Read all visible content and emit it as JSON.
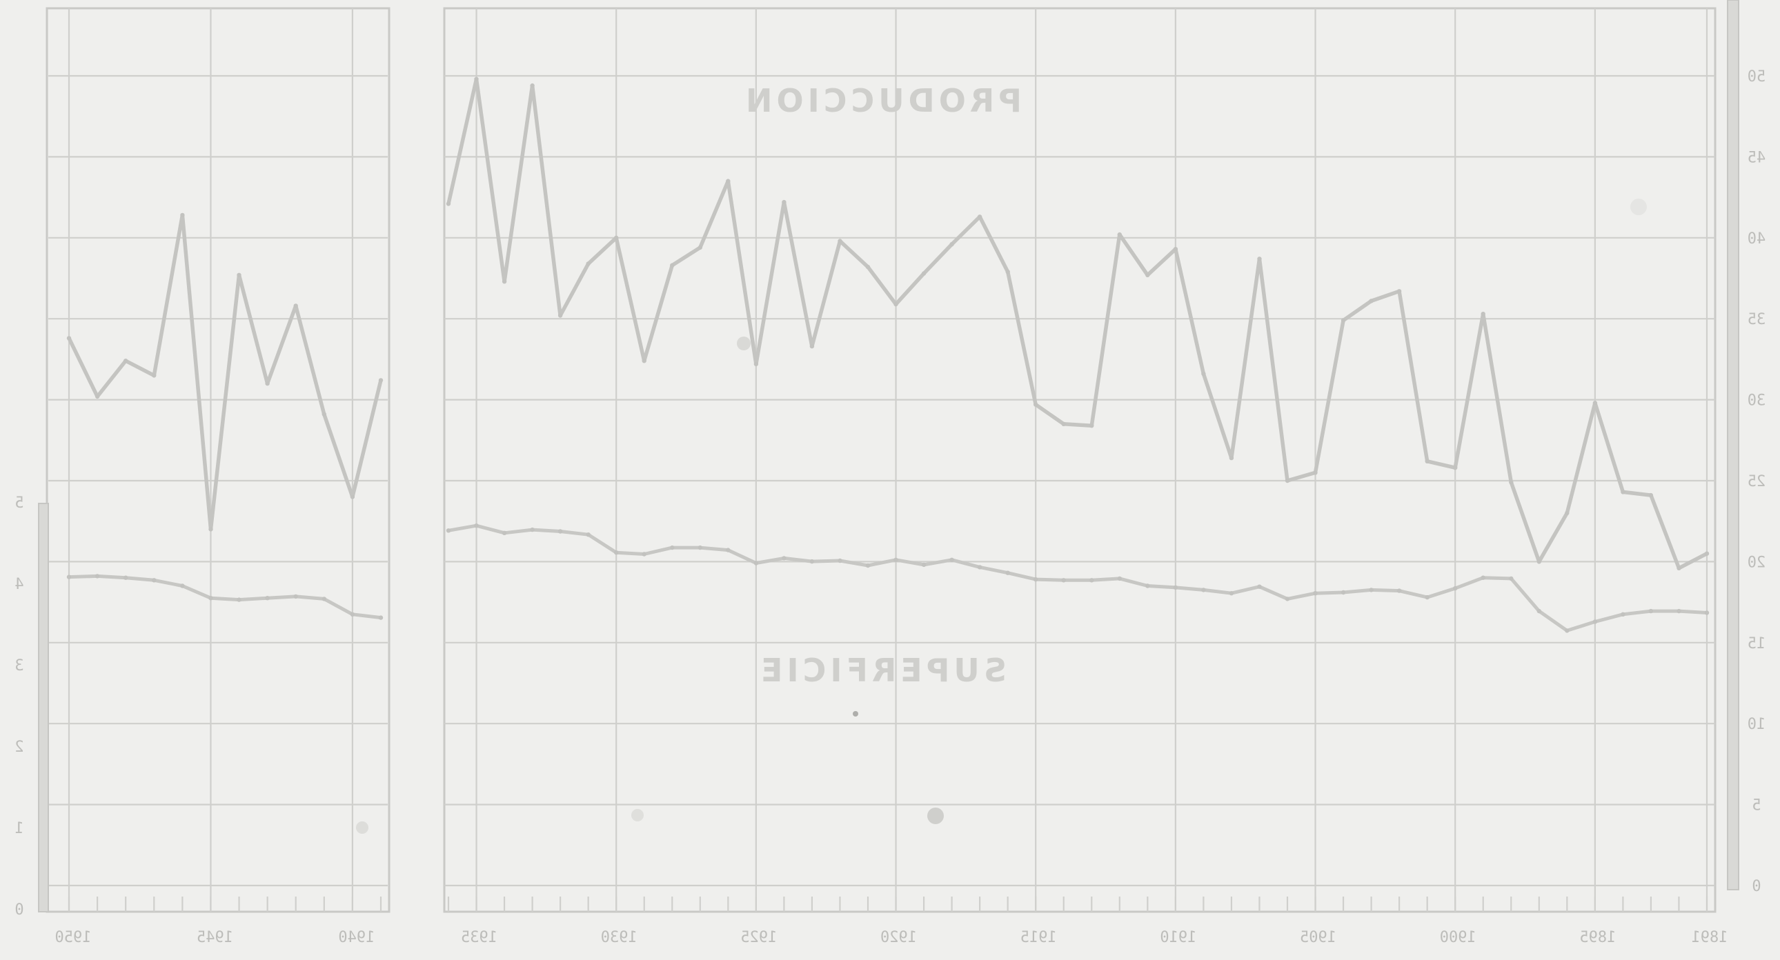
{
  "chart_data": {
    "type": "line",
    "note_orientation": "mirrored",
    "labels": {
      "production": "PRODUCCION",
      "surface": "SUPERFICIE"
    },
    "left_axis": {
      "ticks": [
        "0",
        "1",
        "2",
        "3",
        "4",
        "5"
      ],
      "range": [
        0,
        5
      ]
    },
    "right_axis": {
      "ticks": [
        "0",
        "5",
        "10",
        "15",
        "20",
        "25",
        "30",
        "35",
        "40",
        "45",
        "50"
      ],
      "range": [
        0,
        50
      ]
    },
    "x_ticks_left": [
      "1950",
      "1945",
      "1940"
    ],
    "x_ticks_right": [
      "1935",
      "1930",
      "1925",
      "1920",
      "1915",
      "1910",
      "1905",
      "1900",
      "1895",
      "1891"
    ],
    "series": [
      {
        "name": "PRODUCCION",
        "panel": "left",
        "x": [
          1950,
          1949,
          1948,
          1947,
          1946,
          1945,
          1944,
          1943,
          1942,
          1941,
          1940,
          1939
        ],
        "values": [
          33.8,
          30.2,
          32.4,
          31.5,
          41.4,
          22.0,
          37.7,
          31.0,
          35.8,
          29.1,
          24.0,
          31.2
        ]
      },
      {
        "name": "SUPERFICIE",
        "panel": "left",
        "x": [
          1950,
          1949,
          1948,
          1947,
          1946,
          1945,
          1944,
          1943,
          1942,
          1941,
          1940,
          1939
        ],
        "values": [
          4.08,
          4.09,
          4.07,
          4.04,
          3.97,
          3.82,
          3.8,
          3.82,
          3.84,
          3.81,
          3.62,
          3.58
        ]
      },
      {
        "name": "PRODUCCION",
        "panel": "right",
        "x": [
          1936,
          1935,
          1934,
          1933,
          1932,
          1931,
          1930,
          1929,
          1928,
          1927,
          1926,
          1925,
          1924,
          1923,
          1922,
          1921,
          1920,
          1919,
          1918,
          1917,
          1916,
          1915,
          1914,
          1913,
          1912,
          1911,
          1910,
          1909,
          1908,
          1907,
          1906,
          1905,
          1904,
          1903,
          1902,
          1901,
          1900,
          1899,
          1898,
          1897,
          1896,
          1895,
          1894,
          1893,
          1892,
          1891
        ],
        "values": [
          42.1,
          49.8,
          37.3,
          49.4,
          35.2,
          38.4,
          40.0,
          32.4,
          38.3,
          39.4,
          43.5,
          32.2,
          42.2,
          33.3,
          39.8,
          38.2,
          35.9,
          37.8,
          39.6,
          41.3,
          37.9,
          29.7,
          28.5,
          28.4,
          40.2,
          37.7,
          39.3,
          31.6,
          26.4,
          38.7,
          25.0,
          25.5,
          34.9,
          36.1,
          36.7,
          26.2,
          25.8,
          35.3,
          24.9,
          20.0,
          23.0,
          29.8,
          24.3,
          24.1,
          19.6,
          20.5
        ],
        "values_note": "first point corresponds to year 1936 at left edge"
      },
      {
        "name": "SUPERFICIE",
        "panel": "right",
        "x": [
          1936,
          1935,
          1934,
          1933,
          1932,
          1931,
          1930,
          1929,
          1928,
          1927,
          1926,
          1925,
          1924,
          1923,
          1922,
          1921,
          1920,
          1919,
          1918,
          1917,
          1916,
          1915,
          1914,
          1913,
          1912,
          1911,
          1910,
          1909,
          1908,
          1907,
          1906,
          1905,
          1904,
          1903,
          1902,
          1901,
          1900,
          1899,
          1898,
          1897,
          1896,
          1895,
          1894,
          1893,
          1892,
          1891
        ],
        "values": [
          4.65,
          4.71,
          4.62,
          4.66,
          4.64,
          4.6,
          4.38,
          4.36,
          4.44,
          4.44,
          4.41,
          4.25,
          4.31,
          4.27,
          4.28,
          4.22,
          4.29,
          4.23,
          4.29,
          4.2,
          4.13,
          4.05,
          4.04,
          4.04,
          4.06,
          3.97,
          3.95,
          3.92,
          3.88,
          3.96,
          3.81,
          3.88,
          3.89,
          3.92,
          3.91,
          3.83,
          3.94,
          4.07,
          4.06,
          3.66,
          3.42,
          3.53,
          3.62,
          3.66,
          3.66,
          3.64
        ]
      }
    ]
  }
}
